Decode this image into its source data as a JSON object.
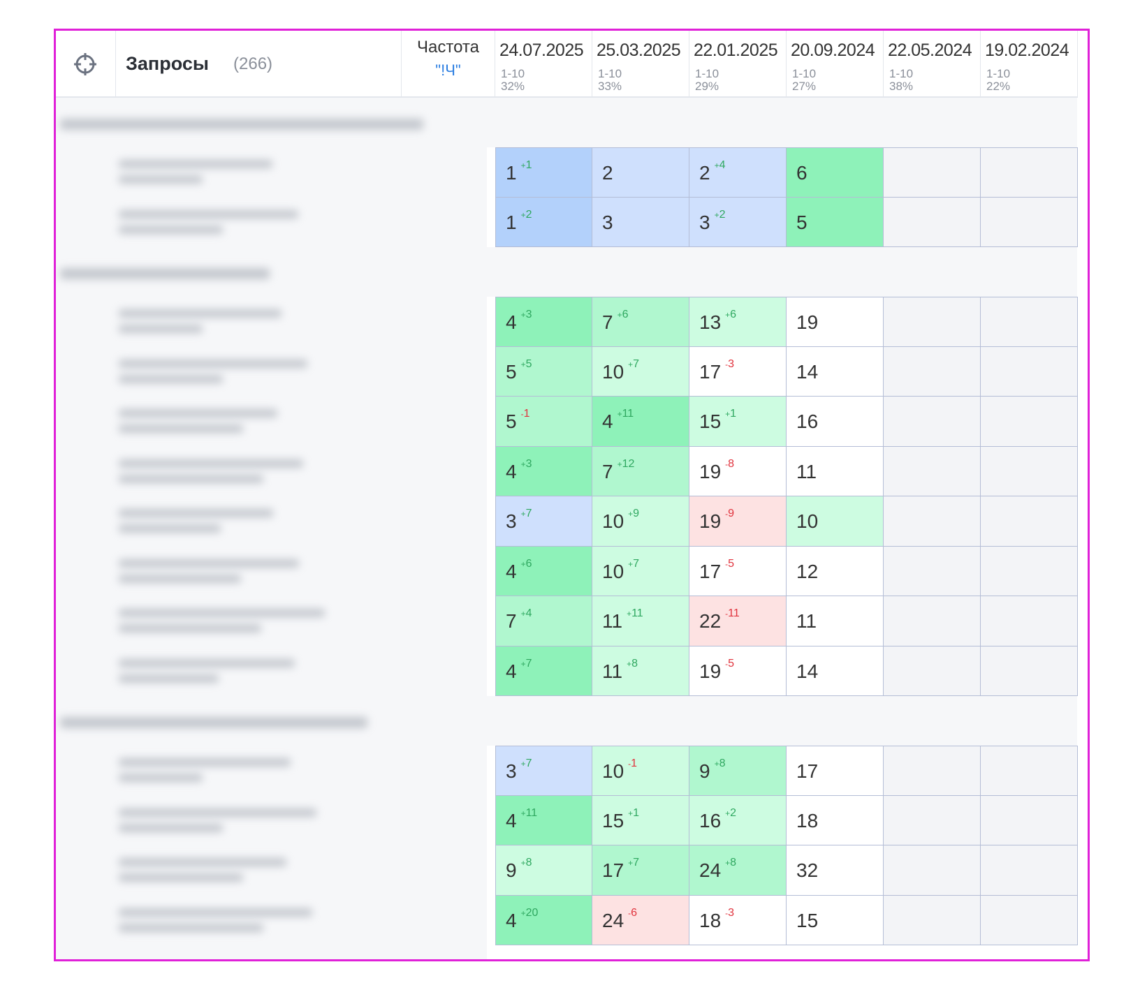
{
  "header": {
    "target_icon": "crosshair-icon",
    "title": "Запросы",
    "count": "(266)",
    "frequency_label": "Частота",
    "frequency_value": "\"!Ч\"",
    "columns": [
      {
        "date": "24.07.2025",
        "range": "1-10",
        "pct": "32%"
      },
      {
        "date": "25.03.2025",
        "range": "1-10",
        "pct": "33%"
      },
      {
        "date": "22.01.2025",
        "range": "1-10",
        "pct": "29%"
      },
      {
        "date": "20.09.2024",
        "range": "1-10",
        "pct": "27%"
      },
      {
        "date": "22.05.2024",
        "range": "1-10",
        "pct": "38%"
      },
      {
        "date": "19.02.2024",
        "range": "1-10",
        "pct": "22%"
      }
    ]
  },
  "colors": {
    "blue_dark": "#b3d1fb",
    "blue_light": "#cfe0fd",
    "green_dark": "#8ef2b9",
    "green_mid": "#b0f7cf",
    "green_light": "#cdfce1",
    "pink": "#fde2e2",
    "white": "#ffffff",
    "empty": "#f3f4f7",
    "up": "#2fa860",
    "down": "#e0323c",
    "border": "#e020d8"
  },
  "groups": [
    {
      "rows": [
        [
          [
            "1",
            "+1",
            "bd"
          ],
          [
            "2",
            "",
            "bl"
          ],
          [
            "2",
            "+4",
            "bl"
          ],
          [
            "6",
            "",
            "gd"
          ],
          null,
          null
        ],
        [
          [
            "1",
            "+2",
            "bd"
          ],
          [
            "3",
            "",
            "bl"
          ],
          [
            "3",
            "+2",
            "bl"
          ],
          [
            "5",
            "",
            "gd"
          ],
          null,
          null
        ]
      ]
    },
    {
      "rows": [
        [
          [
            "4",
            "+3",
            "gd"
          ],
          [
            "7",
            "+6",
            "gm"
          ],
          [
            "13",
            "+6",
            "gl"
          ],
          [
            "19",
            "",
            "w"
          ],
          null,
          null
        ],
        [
          [
            "5",
            "+5",
            "gm"
          ],
          [
            "10",
            "+7",
            "gl"
          ],
          [
            "17",
            "-3",
            "w"
          ],
          [
            "14",
            "",
            "w"
          ],
          null,
          null
        ],
        [
          [
            "5",
            "-1",
            "gm"
          ],
          [
            "4",
            "+11",
            "gd"
          ],
          [
            "15",
            "+1",
            "gl"
          ],
          [
            "16",
            "",
            "w"
          ],
          null,
          null
        ],
        [
          [
            "4",
            "+3",
            "gd"
          ],
          [
            "7",
            "+12",
            "gm"
          ],
          [
            "19",
            "-8",
            "w"
          ],
          [
            "11",
            "",
            "w"
          ],
          null,
          null
        ],
        [
          [
            "3",
            "+7",
            "bl"
          ],
          [
            "10",
            "+9",
            "gl"
          ],
          [
            "19",
            "-9",
            "p"
          ],
          [
            "10",
            "",
            "gl"
          ],
          null,
          null
        ],
        [
          [
            "4",
            "+6",
            "gd"
          ],
          [
            "10",
            "+7",
            "gl"
          ],
          [
            "17",
            "-5",
            "w"
          ],
          [
            "12",
            "",
            "w"
          ],
          null,
          null
        ],
        [
          [
            "7",
            "+4",
            "gm"
          ],
          [
            "11",
            "+11",
            "gl"
          ],
          [
            "22",
            "-11",
            "p"
          ],
          [
            "11",
            "",
            "w"
          ],
          null,
          null
        ],
        [
          [
            "4",
            "+7",
            "gd"
          ],
          [
            "11",
            "+8",
            "gl"
          ],
          [
            "19",
            "-5",
            "w"
          ],
          [
            "14",
            "",
            "w"
          ],
          null,
          null
        ]
      ]
    },
    {
      "rows": [
        [
          [
            "3",
            "+7",
            "bl"
          ],
          [
            "10",
            "-1",
            "gl"
          ],
          [
            "9",
            "+8",
            "gm"
          ],
          [
            "17",
            "",
            "w"
          ],
          null,
          null
        ],
        [
          [
            "4",
            "+11",
            "gd"
          ],
          [
            "15",
            "+1",
            "gl"
          ],
          [
            "16",
            "+2",
            "gl"
          ],
          [
            "18",
            "",
            "w"
          ],
          null,
          null
        ],
        [
          [
            "9",
            "+8",
            "gl"
          ],
          [
            "17",
            "+7",
            "gm"
          ],
          [
            "24",
            "+8",
            "gm"
          ],
          [
            "32",
            "",
            "w"
          ],
          null,
          null
        ],
        [
          [
            "4",
            "+20",
            "gd"
          ],
          [
            "24",
            "-6",
            "p"
          ],
          [
            "18",
            "-3",
            "w"
          ],
          [
            "15",
            "",
            "w"
          ],
          null,
          null
        ]
      ]
    }
  ]
}
